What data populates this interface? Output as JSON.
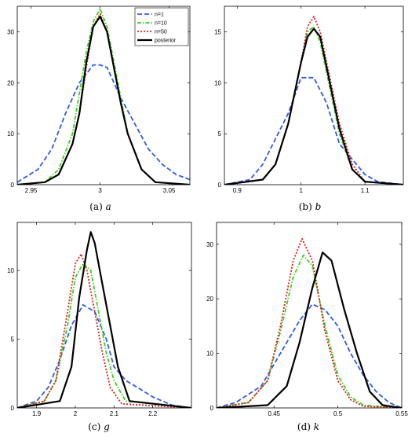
{
  "series_styles": [
    {
      "color": "#2f5bea",
      "dash": "6,3",
      "width": 1.8
    },
    {
      "color": "#3ccf1e",
      "dash": "5,2,1.5,2",
      "width": 1.8
    },
    {
      "color": "#e11b1b",
      "dash": "2,2",
      "width": 1.8
    },
    {
      "color": "#000000",
      "dash": "",
      "width": 2.2
    }
  ],
  "chart_data": [
    {
      "type": "line",
      "caption_prefix": "(a)",
      "caption_var": "a",
      "xlim": [
        2.94,
        3.065
      ],
      "ylim": [
        0,
        35
      ],
      "xticks": [
        {
          "v": 2.95,
          "t": "2.95"
        },
        {
          "v": 3.0,
          "t": "3"
        },
        {
          "v": 3.05,
          "t": "3.05"
        }
      ],
      "yticks": [
        {
          "v": 10,
          "t": "10"
        },
        {
          "v": 20,
          "t": "20"
        },
        {
          "v": 30,
          "t": "30"
        }
      ],
      "legend": [
        "n=1",
        "n=10",
        "n=50",
        "posterior"
      ],
      "series": [
        {
          "name": "n=1",
          "x": [
            2.94,
            2.955,
            2.965,
            2.975,
            2.985,
            2.995,
            3.0,
            3.005,
            3.015,
            3.025,
            3.035,
            3.045,
            3.055,
            3.065
          ],
          "y": [
            0.5,
            3,
            7,
            14,
            20,
            23.5,
            23.5,
            23,
            17,
            12,
            7,
            4,
            2,
            1
          ]
        },
        {
          "name": "n=10",
          "x": [
            2.94,
            2.96,
            2.97,
            2.98,
            2.99,
            2.995,
            3.0,
            3.005,
            3.01,
            3.02,
            3.03,
            3.04,
            3.065
          ],
          "y": [
            0,
            0.5,
            3,
            10,
            26,
            32,
            34.5,
            31,
            24,
            10,
            3,
            0.5,
            0
          ]
        },
        {
          "name": "n=50",
          "x": [
            2.94,
            2.96,
            2.97,
            2.98,
            2.985,
            2.99,
            2.995,
            3.0,
            3.005,
            3.01,
            3.015,
            3.02,
            3.03,
            3.04,
            3.065
          ],
          "y": [
            0,
            0.5,
            2,
            8,
            14,
            23,
            31,
            33.5,
            30,
            23,
            16,
            10,
            3,
            0.5,
            0
          ]
        },
        {
          "name": "posterior",
          "x": [
            2.94,
            2.96,
            2.97,
            2.98,
            2.985,
            2.99,
            2.995,
            3.0,
            3.005,
            3.01,
            3.015,
            3.02,
            3.03,
            3.04,
            3.065
          ],
          "y": [
            0,
            0.5,
            2,
            8,
            14,
            24,
            31,
            33,
            30,
            23,
            16,
            10,
            3,
            0.5,
            0
          ]
        }
      ]
    },
    {
      "type": "line",
      "caption_prefix": "(b)",
      "caption_var": "b",
      "xlim": [
        0.88,
        1.16
      ],
      "ylim": [
        0,
        17.5
      ],
      "xticks": [
        {
          "v": 0.9,
          "t": "0.9"
        },
        {
          "v": 1.0,
          "t": "1"
        },
        {
          "v": 1.1,
          "t": "1.1"
        }
      ],
      "yticks": [
        {
          "v": 5,
          "t": "5"
        },
        {
          "v": 10,
          "t": "10"
        },
        {
          "v": 15,
          "t": "15"
        }
      ],
      "legend": [],
      "series": [
        {
          "name": "",
          "x": [
            0.88,
            0.92,
            0.94,
            0.96,
            0.98,
            1.0,
            1.02,
            1.04,
            1.06,
            1.08,
            1.1,
            1.12,
            1.16
          ],
          "y": [
            0,
            0.5,
            2,
            4.5,
            7,
            10.5,
            10.5,
            8,
            4,
            2.5,
            1,
            0.3,
            0
          ]
        },
        {
          "name": "",
          "x": [
            0.88,
            0.94,
            0.96,
            0.98,
            1.0,
            1.01,
            1.02,
            1.03,
            1.04,
            1.06,
            1.08,
            1.1,
            1.16
          ],
          "y": [
            0,
            0.5,
            2,
            6,
            12,
            15,
            15.5,
            14,
            11,
            5,
            1.5,
            0.3,
            0
          ]
        },
        {
          "name": "",
          "x": [
            0.88,
            0.94,
            0.96,
            0.98,
            1.0,
            1.01,
            1.02,
            1.03,
            1.04,
            1.06,
            1.08,
            1.1,
            1.16
          ],
          "y": [
            0,
            0.5,
            2,
            6,
            12,
            15.5,
            16.5,
            15,
            12,
            6,
            2,
            0.3,
            0
          ]
        },
        {
          "name": "",
          "x": [
            0.88,
            0.94,
            0.96,
            0.98,
            1.0,
            1.01,
            1.02,
            1.03,
            1.04,
            1.06,
            1.08,
            1.1,
            1.16
          ],
          "y": [
            0,
            0.5,
            2,
            6,
            12,
            14.5,
            15.3,
            14.5,
            11.5,
            5.5,
            1.5,
            0.3,
            0
          ]
        }
      ]
    },
    {
      "type": "line",
      "caption_prefix": "(c)",
      "caption_var": "g",
      "xlim": [
        1.85,
        2.3
      ],
      "ylim": [
        0,
        13.5
      ],
      "xticks": [
        {
          "v": 1.9,
          "t": "1.9"
        },
        {
          "v": 2.0,
          "t": "2"
        },
        {
          "v": 2.1,
          "t": "2.1"
        },
        {
          "v": 2.2,
          "t": "2.2"
        }
      ],
      "yticks": [
        {
          "v": 5,
          "t": "5"
        },
        {
          "v": 10,
          "t": "10"
        }
      ],
      "legend": [],
      "series": [
        {
          "name": "",
          "x": [
            1.85,
            1.9,
            1.93,
            1.96,
            1.99,
            2.02,
            2.05,
            2.08,
            2.1,
            2.13,
            2.16,
            2.2,
            2.25,
            2.3
          ],
          "y": [
            0,
            0.5,
            1.5,
            3.5,
            6,
            7.5,
            7,
            5,
            3,
            2,
            1.5,
            0.8,
            0.2,
            0
          ]
        },
        {
          "name": "",
          "x": [
            1.85,
            1.92,
            1.95,
            1.98,
            2.0,
            2.02,
            2.04,
            2.06,
            2.08,
            2.1,
            2.13,
            2.3
          ],
          "y": [
            0,
            0.5,
            2,
            6,
            9.5,
            10.5,
            10,
            7,
            4,
            2,
            0.5,
            0
          ]
        },
        {
          "name": "",
          "x": [
            1.85,
            1.92,
            1.95,
            1.98,
            2.0,
            2.015,
            2.03,
            2.05,
            2.07,
            2.09,
            2.12,
            2.3
          ],
          "y": [
            0,
            0.5,
            2,
            7,
            10.5,
            11.2,
            10,
            7,
            4,
            1.5,
            0.3,
            0
          ]
        },
        {
          "name": "",
          "x": [
            1.85,
            1.96,
            1.99,
            2.01,
            2.03,
            2.04,
            2.05,
            2.07,
            2.09,
            2.11,
            2.14,
            2.3
          ],
          "y": [
            0,
            0.5,
            3,
            8,
            11.5,
            12.8,
            12,
            9,
            6,
            3,
            0.5,
            0
          ]
        }
      ]
    },
    {
      "type": "line",
      "caption_prefix": "(d)",
      "caption_var": "k",
      "xlim": [
        0.405,
        0.55
      ],
      "ylim": [
        0,
        34
      ],
      "xticks": [
        {
          "v": 0.45,
          "t": "0.45"
        },
        {
          "v": 0.5,
          "t": "0.5"
        },
        {
          "v": 0.55,
          "t": "0.55"
        }
      ],
      "yticks": [
        {
          "v": 10,
          "t": "10"
        },
        {
          "v": 20,
          "t": "20"
        },
        {
          "v": 30,
          "t": "30"
        }
      ],
      "legend": [],
      "series": [
        {
          "name": "",
          "x": [
            0.405,
            0.42,
            0.44,
            0.46,
            0.47,
            0.48,
            0.49,
            0.5,
            0.51,
            0.52,
            0.53,
            0.54,
            0.55
          ],
          "y": [
            0,
            1,
            4,
            12,
            16,
            19,
            18,
            15,
            10,
            6,
            3,
            1,
            0
          ]
        },
        {
          "name": "",
          "x": [
            0.405,
            0.43,
            0.445,
            0.455,
            0.465,
            0.473,
            0.48,
            0.49,
            0.5,
            0.51,
            0.52,
            0.55
          ],
          "y": [
            0,
            1,
            5,
            14,
            24,
            28,
            26,
            15,
            6,
            2,
            0.5,
            0
          ]
        },
        {
          "name": "",
          "x": [
            0.405,
            0.43,
            0.445,
            0.455,
            0.465,
            0.472,
            0.48,
            0.49,
            0.5,
            0.51,
            0.52,
            0.55
          ],
          "y": [
            0,
            1,
            5,
            15,
            27,
            31,
            27,
            14,
            5,
            1.5,
            0.3,
            0
          ]
        },
        {
          "name": "",
          "x": [
            0.405,
            0.445,
            0.46,
            0.47,
            0.48,
            0.488,
            0.495,
            0.505,
            0.515,
            0.525,
            0.535,
            0.55
          ],
          "y": [
            0,
            0.5,
            4,
            12,
            22,
            28.5,
            27,
            18,
            10,
            3,
            0.5,
            0
          ]
        }
      ]
    }
  ]
}
